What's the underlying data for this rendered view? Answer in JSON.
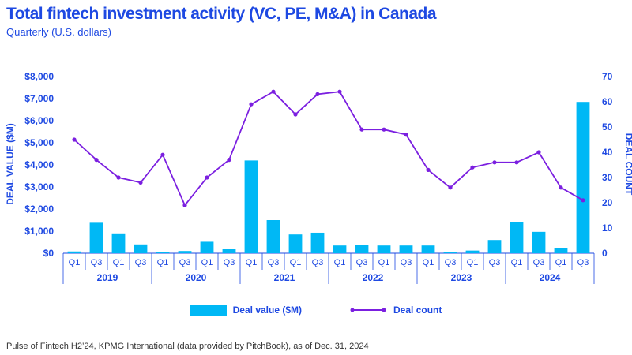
{
  "title": "Total fintech investment activity (VC, PE, M&A) in Canada",
  "subtitle": "Quarterly (U.S. dollars)",
  "source": "Pulse of Fintech H2’24, KPMG International (data provided by PitchBook), as of Dec. 31, 2024",
  "colors": {
    "bar": "#00b8f5",
    "line": "#7b1fe0",
    "text": "#1e49e2",
    "axis": "#1e49e2"
  },
  "chart_data": {
    "type": "bar+line",
    "categories": [
      "Q1",
      "Q3",
      "Q1",
      "Q3",
      "Q1",
      "Q3",
      "Q1",
      "Q3",
      "Q1",
      "Q3",
      "Q1",
      "Q3",
      "Q1",
      "Q3",
      "Q1",
      "Q3",
      "Q1",
      "Q3",
      "Q1",
      "Q3",
      "Q1",
      "Q3",
      "Q1",
      "Q3"
    ],
    "year_labels": [
      "2019",
      "2020",
      "2021",
      "2022",
      "2023",
      "2024"
    ],
    "y_left": {
      "label": "DEAL VALUE ($M)",
      "ticks": [
        "$0",
        "$1,000",
        "$2,000",
        "$3,000",
        "$4,000",
        "$5,000",
        "$6,000",
        "$7,000",
        "$8,000"
      ],
      "lim": [
        0,
        8000
      ]
    },
    "y_right": {
      "label": "DEAL COUNT",
      "ticks": [
        "0",
        "10",
        "20",
        "30",
        "40",
        "50",
        "60",
        "70"
      ],
      "lim": [
        0,
        70
      ]
    },
    "series": [
      {
        "name": "Deal value ($M)",
        "type": "bar",
        "values": [
          80,
          1380,
          900,
          400,
          50,
          100,
          520,
          200,
          4200,
          1500,
          850,
          930,
          350,
          380,
          350,
          350,
          350,
          50,
          120,
          600,
          1400,
          970,
          250,
          6850
        ]
      },
      {
        "name": "Deal count",
        "type": "line",
        "values": [
          45,
          37,
          30,
          28,
          39,
          19,
          30,
          37,
          59,
          64,
          55,
          63,
          64,
          49,
          49,
          47,
          33,
          26,
          34,
          36,
          36,
          40,
          26,
          21
        ]
      }
    ],
    "legend": "bottom-center"
  }
}
